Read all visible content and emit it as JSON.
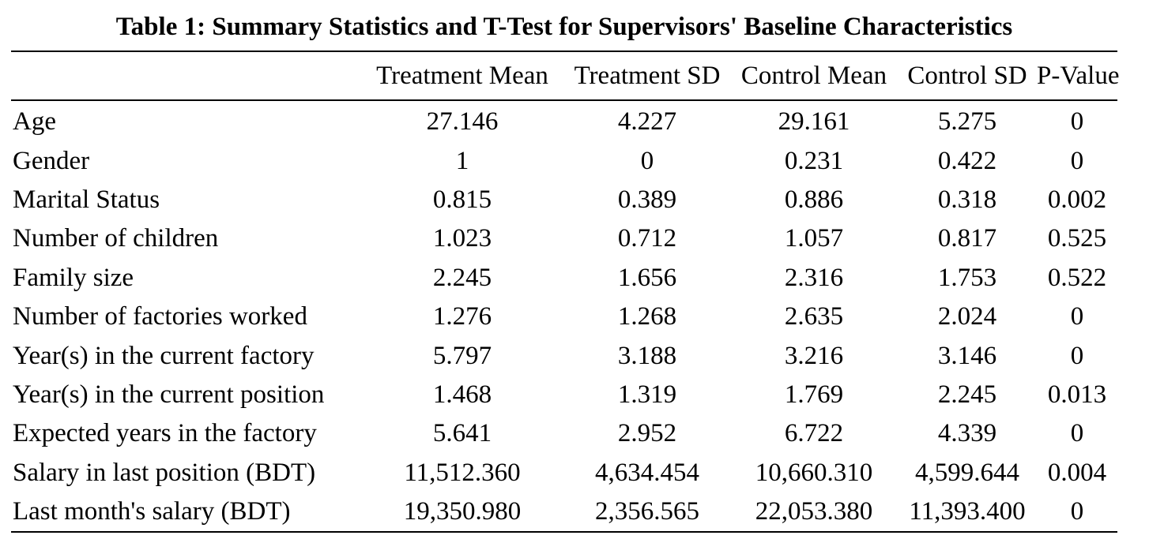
{
  "table": {
    "title": "Table 1: Summary Statistics and T-Test for Supervisors' Baseline Characteristics",
    "columns": [
      "",
      "Treatment Mean",
      "Treatment SD",
      "Control Mean",
      "Control SD",
      "P-Value"
    ],
    "rows": [
      [
        "Age",
        "27.146",
        "4.227",
        "29.161",
        "5.275",
        "0"
      ],
      [
        "Gender",
        "1",
        "0",
        "0.231",
        "0.422",
        "0"
      ],
      [
        "Marital Status",
        "0.815",
        "0.389",
        "0.886",
        "0.318",
        "0.002"
      ],
      [
        "Number of children",
        "1.023",
        "0.712",
        "1.057",
        "0.817",
        "0.525"
      ],
      [
        "Family size",
        "2.245",
        "1.656",
        "2.316",
        "1.753",
        "0.522"
      ],
      [
        "Number of factories worked",
        "1.276",
        "1.268",
        "2.635",
        "2.024",
        "0"
      ],
      [
        "Year(s) in the current factory",
        "5.797",
        "3.188",
        "3.216",
        "3.146",
        "0"
      ],
      [
        "Year(s) in the current position",
        "1.468",
        "1.319",
        "1.769",
        "2.245",
        "0.013"
      ],
      [
        "Expected years in the factory",
        "5.641",
        "2.952",
        "6.722",
        "4.339",
        "0"
      ],
      [
        "Salary in last position (BDT)",
        "11,512.360",
        "4,634.454",
        "10,660.310",
        "4,599.644",
        "0.004"
      ],
      [
        "Last month's salary (BDT)",
        "19,350.980",
        "2,356.565",
        "22,053.380",
        "11,393.400",
        "0"
      ]
    ]
  }
}
